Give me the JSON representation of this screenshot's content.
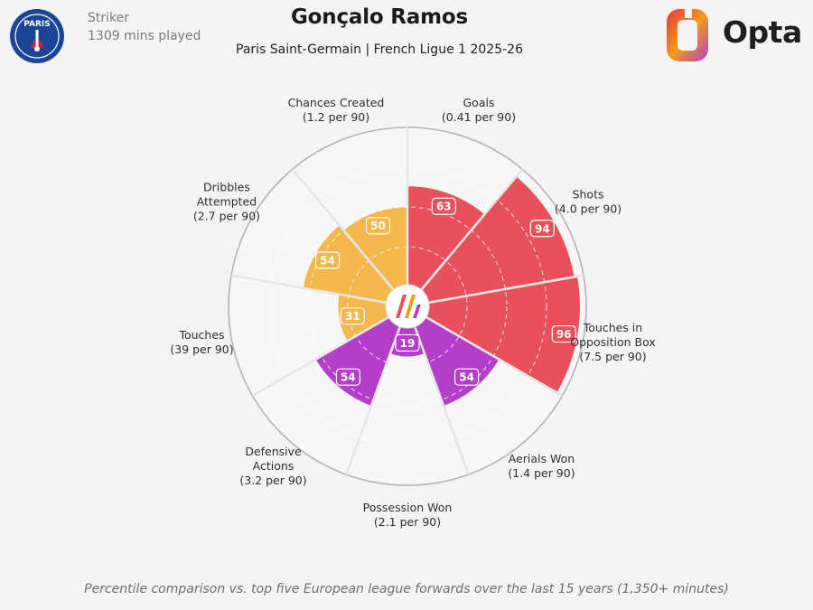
{
  "player": {
    "name": "Gonçalo Ramos",
    "position": "Striker",
    "minutes": "1309 mins played",
    "subtitle": "Paris Saint-Germain | French Ligue 1 2025-26"
  },
  "badge": {
    "text": "PARIS",
    "colors": {
      "navy": "#1b4596",
      "red": "#d4213d"
    }
  },
  "brand": {
    "name": "Opta",
    "colors": [
      "#e8343d",
      "#f39a1a",
      "#b43fc9"
    ]
  },
  "footnote": "Percentile comparison vs. top five European league forwards over the last 15 years (1,350+ minutes)",
  "chart_data": {
    "type": "pizza",
    "scale": [
      0,
      100
    ],
    "grid": true,
    "colors": {
      "attacking": "#e8505b",
      "possession": "#f5b84c",
      "defending": "#b33ec9"
    },
    "metrics": [
      {
        "label": [
          "Goals",
          "(0.41 per 90)"
        ],
        "percentile": 63,
        "group": "attacking"
      },
      {
        "label": [
          "Shots",
          "(4.0 per 90)"
        ],
        "percentile": 94,
        "group": "attacking"
      },
      {
        "label": [
          "Touches in",
          "Opposition Box",
          "(7.5 per 90)"
        ],
        "percentile": 96,
        "group": "attacking"
      },
      {
        "label": [
          "Aerials Won",
          "(1.4 per 90)"
        ],
        "percentile": 54,
        "group": "defending"
      },
      {
        "label": [
          "Possession Won",
          "(2.1 per 90)"
        ],
        "percentile": 19,
        "group": "defending"
      },
      {
        "label": [
          "Defensive",
          "Actions",
          "(3.2 per 90)"
        ],
        "percentile": 54,
        "group": "defending"
      },
      {
        "label": [
          "Touches",
          "(39 per 90)"
        ],
        "percentile": 31,
        "group": "possession"
      },
      {
        "label": [
          "Dribbles",
          "Attempted",
          "(2.7 per 90)"
        ],
        "percentile": 54,
        "group": "possession"
      },
      {
        "label": [
          "Chances Created",
          "(1.2 per 90)"
        ],
        "percentile": 50,
        "group": "possession"
      }
    ]
  }
}
